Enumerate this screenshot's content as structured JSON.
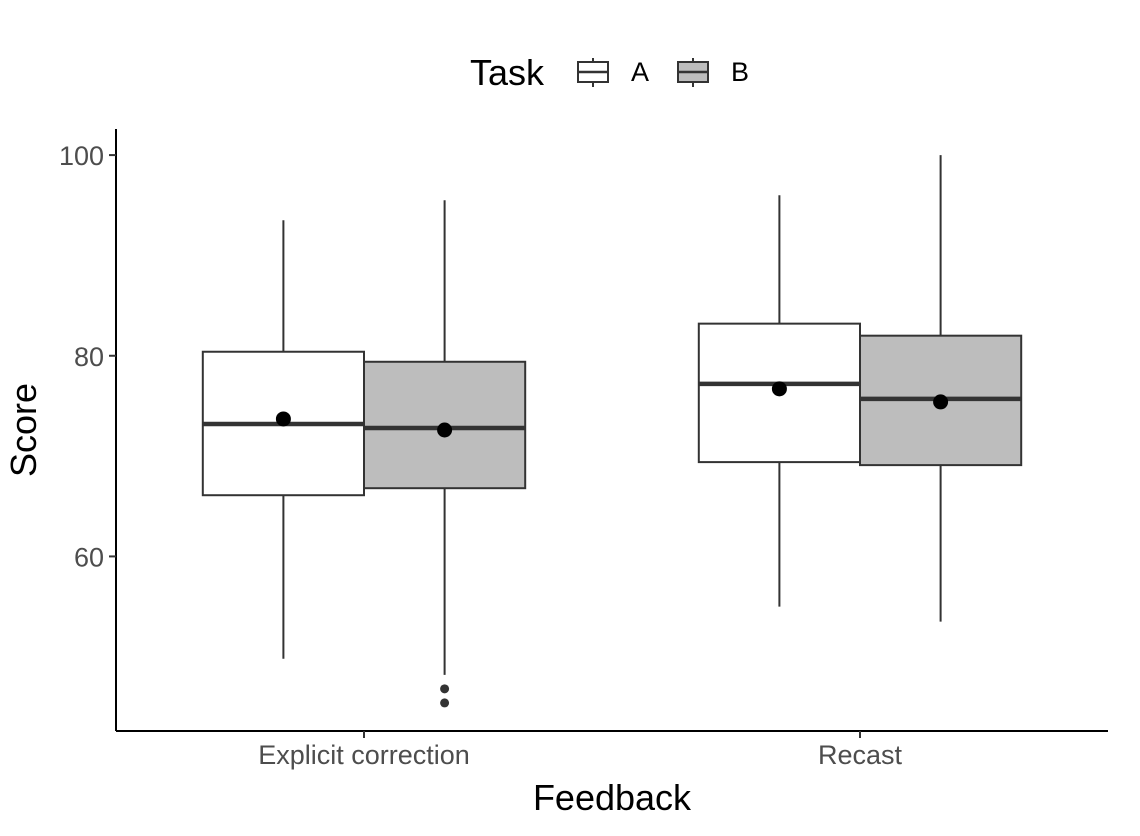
{
  "chart_data": {
    "type": "boxplot",
    "xlabel": "Feedback",
    "ylabel": "Score",
    "ylim": [
      42.6,
      102.6
    ],
    "yticks": [
      60,
      80,
      100
    ],
    "grid": false,
    "legend": {
      "title": "Task",
      "position": "top",
      "entries": [
        {
          "label": "A",
          "fill": "#ffffff"
        },
        {
          "label": "B",
          "fill": "#bdbdbd"
        }
      ]
    },
    "categories": [
      "Explicit correction",
      "Recast"
    ],
    "series": [
      {
        "name": "A",
        "fill": "#ffffff",
        "boxes": [
          {
            "whisker_low": 49.8,
            "q1": 66.1,
            "median": 73.2,
            "q3": 80.4,
            "whisker_high": 93.5,
            "mean": 73.7,
            "outliers": []
          },
          {
            "whisker_low": 55.0,
            "q1": 69.4,
            "median": 77.2,
            "q3": 83.2,
            "whisker_high": 96.0,
            "mean": 76.7,
            "outliers": []
          }
        ]
      },
      {
        "name": "B",
        "fill": "#bdbdbd",
        "boxes": [
          {
            "whisker_low": 48.2,
            "q1": 66.8,
            "median": 72.8,
            "q3": 79.4,
            "whisker_high": 95.5,
            "mean": 72.6,
            "outliers": [
              46.8,
              45.4
            ]
          },
          {
            "whisker_low": 53.5,
            "q1": 69.1,
            "median": 75.7,
            "q3": 82.0,
            "whisker_high": 100.0,
            "mean": 75.4,
            "outliers": []
          }
        ]
      }
    ]
  }
}
